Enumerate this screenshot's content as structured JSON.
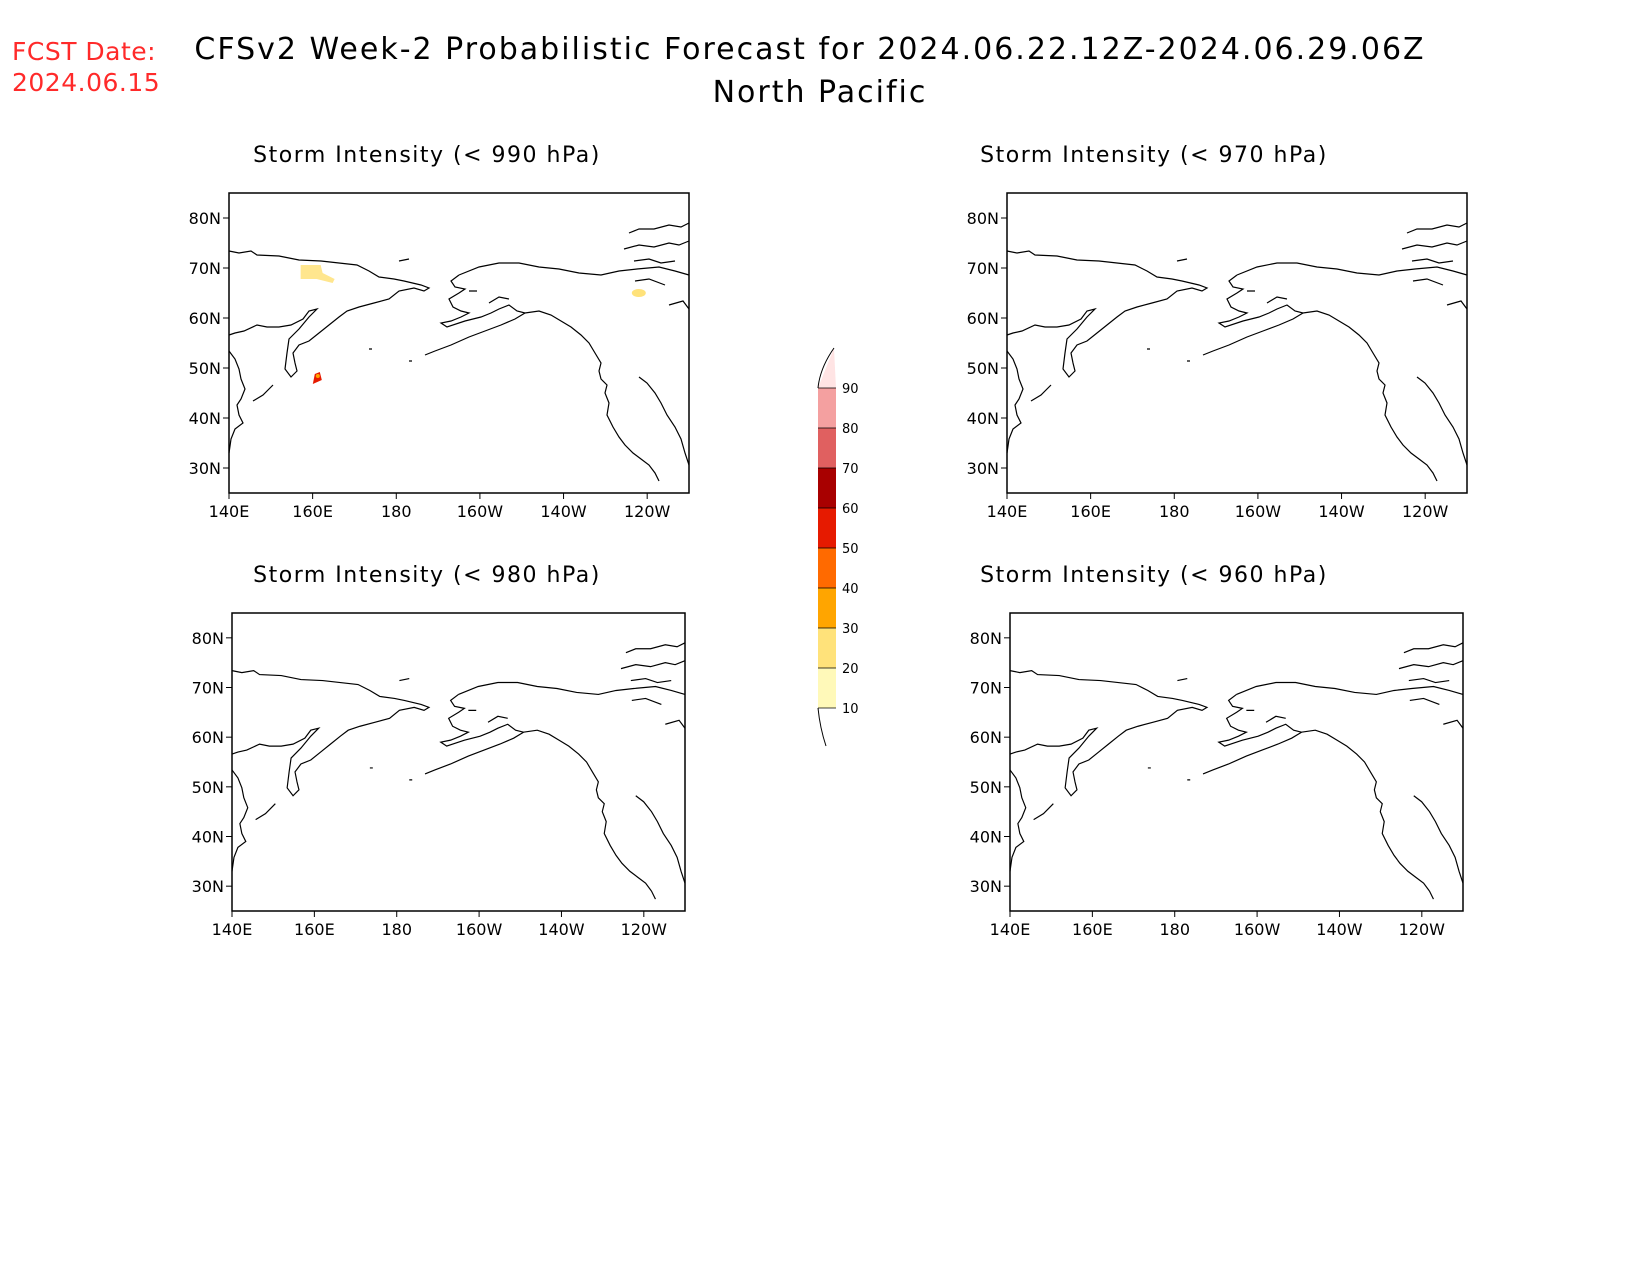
{
  "fcst_date": {
    "label": "FCST Date:",
    "value": "2024.06.15"
  },
  "title": "CFSv2 Week-2 Probabilistic Forecast for 2024.06.22.12Z-2024.06.29.06Z",
  "subtitle": "North Pacific",
  "panels": [
    {
      "title": "Storm Intensity (< 990 hPa)"
    },
    {
      "title": "Storm Intensity (< 970 hPa)"
    },
    {
      "title": "Storm Intensity (< 980 hPa)"
    },
    {
      "title": "Storm Intensity (< 960 hPa)"
    }
  ],
  "axes": {
    "lon_ticks": [
      "140E",
      "160E",
      "180",
      "160W",
      "140W",
      "120W"
    ],
    "lat_ticks": [
      "80N",
      "70N",
      "60N",
      "50N",
      "40N",
      "30N"
    ]
  },
  "colorbar": {
    "levels": [
      "10",
      "20",
      "30",
      "40",
      "50",
      "60",
      "70",
      "80",
      "90"
    ],
    "colors": [
      "#fff9b9",
      "#ffe27a",
      "#ffa500",
      "#ff6a00",
      "#e61a00",
      "#a80000",
      "#e06060",
      "#f4a0a0",
      "#ffe4e4"
    ]
  },
  "chart_data": {
    "type": "heatmap",
    "series_note": "",
    "features": [
      {
        "panel": 0,
        "lon": 160,
        "lat": 69,
        "prob_bin": "10-20"
      },
      {
        "panel": 0,
        "lon": 161,
        "lat": 48,
        "prob_bin": "40-60"
      },
      {
        "panel": 0,
        "lon": 238,
        "lat": 65,
        "prob_bin": "10-20"
      }
    ]
  }
}
